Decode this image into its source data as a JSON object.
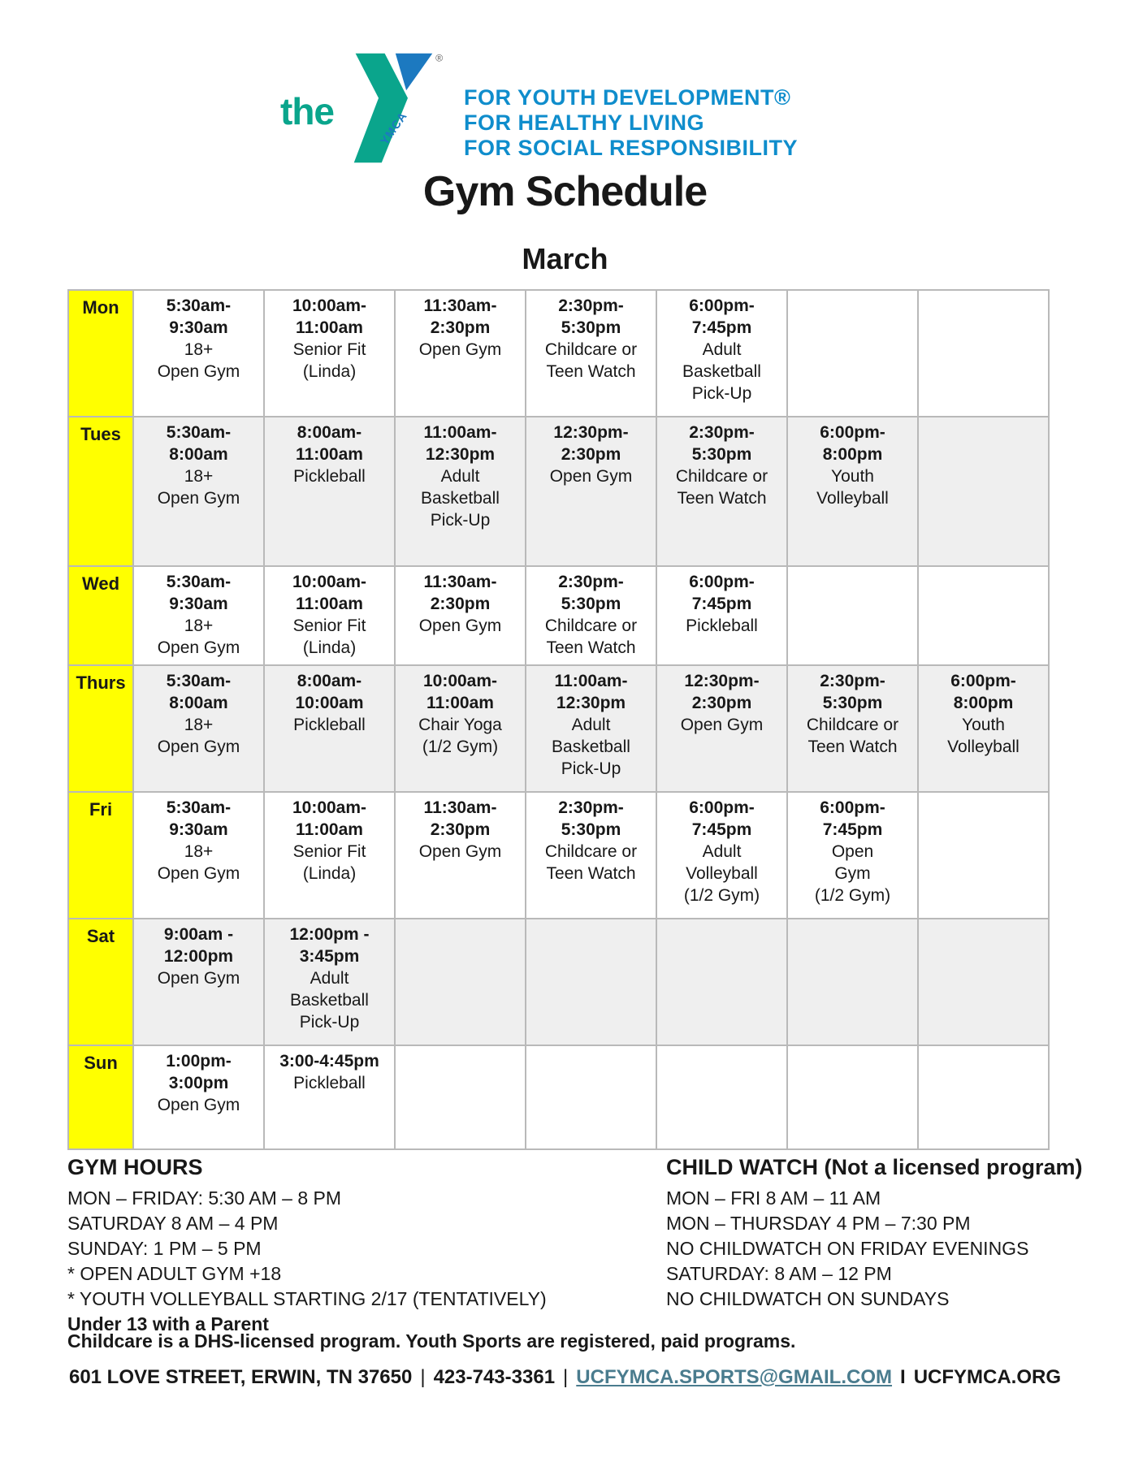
{
  "logo": {
    "the": "the",
    "ymca": "YMCA",
    "registered": "®",
    "taglines": [
      "FOR YOUTH DEVELOPMENT®",
      "FOR HEALTHY LIVING",
      "FOR SOCIAL RESPONSIBILITY"
    ]
  },
  "title": "Gym Schedule",
  "subtitle": "March",
  "colors": {
    "ymca_green": "#0aa58c",
    "ymca_blue": "#0f8dcc",
    "triangle_blue": "#1c79c0",
    "day_cell_yellow": "#ffff00",
    "shaded_row": "#efefef",
    "grid_border": "#b9b9b9",
    "email_link": "#4a7c8e"
  },
  "schedule": {
    "rows": [
      {
        "day": "Mon",
        "shaded": false,
        "cells": [
          {
            "time": [
              "5:30am-",
              "9:30am"
            ],
            "activity": [
              "18+",
              "Open Gym"
            ]
          },
          {
            "time": [
              "10:00am-",
              "11:00am"
            ],
            "activity": [
              "Senior Fit",
              "(Linda)"
            ]
          },
          {
            "time": [
              "11:30am-",
              "2:30pm"
            ],
            "activity": [
              "Open Gym"
            ]
          },
          {
            "time": [
              "2:30pm-",
              "5:30pm"
            ],
            "activity": [
              "Childcare or",
              "Teen Watch"
            ]
          },
          {
            "time": [
              "6:00pm-",
              "7:45pm"
            ],
            "activity": [
              "Adult",
              "Basketball",
              "Pick-Up"
            ]
          },
          null,
          null
        ]
      },
      {
        "day": "Tues",
        "shaded": true,
        "cells": [
          {
            "time": [
              "5:30am-",
              "8:00am"
            ],
            "activity": [
              "18+",
              "Open Gym"
            ]
          },
          {
            "time": [
              "8:00am-",
              "11:00am"
            ],
            "activity": [
              "Pickleball"
            ]
          },
          {
            "time": [
              "11:00am-",
              "12:30pm"
            ],
            "activity": [
              "Adult",
              "Basketball",
              "Pick-Up"
            ]
          },
          {
            "time": [
              "12:30pm-",
              "2:30pm"
            ],
            "activity": [
              "Open Gym"
            ]
          },
          {
            "time": [
              "2:30pm-",
              "5:30pm"
            ],
            "activity": [
              "Childcare or",
              "Teen Watch"
            ]
          },
          {
            "time": [
              "6:00pm-",
              "8:00pm"
            ],
            "activity": [
              "Youth",
              "Volleyball"
            ]
          },
          null
        ]
      },
      {
        "day": "Wed",
        "shaded": false,
        "cells": [
          {
            "time": [
              "5:30am-",
              "9:30am"
            ],
            "activity": [
              "18+",
              "Open Gym"
            ]
          },
          {
            "time": [
              "10:00am-",
              "11:00am"
            ],
            "activity": [
              "Senior Fit",
              "(Linda)"
            ]
          },
          {
            "time": [
              "11:30am-",
              "2:30pm"
            ],
            "activity": [
              "Open Gym"
            ]
          },
          {
            "time": [
              "2:30pm-",
              "5:30pm"
            ],
            "activity": [
              "Childcare or",
              "Teen Watch"
            ]
          },
          {
            "time": [
              "6:00pm-",
              "7:45pm"
            ],
            "activity": [
              "Pickleball"
            ]
          },
          null,
          null
        ]
      },
      {
        "day": "Thurs",
        "shaded": true,
        "cells": [
          {
            "time": [
              "5:30am-",
              "8:00am"
            ],
            "activity": [
              "18+",
              "Open Gym"
            ]
          },
          {
            "time": [
              "8:00am-",
              "10:00am"
            ],
            "activity": [
              "Pickleball"
            ]
          },
          {
            "time": [
              "10:00am-",
              "11:00am"
            ],
            "activity": [
              "Chair Yoga",
              "(1/2 Gym)"
            ]
          },
          {
            "time": [
              "11:00am-",
              "12:30pm"
            ],
            "activity": [
              "Adult",
              "Basketball",
              "Pick-Up"
            ]
          },
          {
            "time": [
              "12:30pm-",
              "2:30pm"
            ],
            "activity": [
              "Open Gym"
            ]
          },
          {
            "time": [
              "2:30pm-",
              "5:30pm"
            ],
            "activity": [
              "Childcare or",
              "Teen Watch"
            ]
          },
          {
            "time": [
              "6:00pm-",
              "8:00pm"
            ],
            "activity": [
              "Youth",
              "Volleyball"
            ]
          }
        ]
      },
      {
        "day": "Fri",
        "shaded": false,
        "cells": [
          {
            "time": [
              "5:30am-",
              "9:30am"
            ],
            "activity": [
              "18+",
              "Open Gym"
            ]
          },
          {
            "time": [
              "10:00am-",
              "11:00am"
            ],
            "activity": [
              "Senior Fit",
              "(Linda)"
            ]
          },
          {
            "time": [
              "11:30am-",
              "2:30pm"
            ],
            "activity": [
              "Open Gym"
            ]
          },
          {
            "time": [
              "2:30pm-",
              "5:30pm"
            ],
            "activity": [
              "Childcare or",
              "Teen Watch"
            ]
          },
          {
            "time": [
              "6:00pm-",
              "7:45pm"
            ],
            "activity": [
              "Adult",
              "Volleyball",
              "(1/2 Gym)"
            ]
          },
          {
            "time": [
              "6:00pm-",
              "7:45pm"
            ],
            "activity": [
              "Open",
              "Gym",
              "(1/2 Gym)"
            ]
          },
          null
        ]
      },
      {
        "day": "Sat",
        "shaded": true,
        "cells": [
          {
            "time": [
              "9:00am -",
              "12:00pm"
            ],
            "activity": [
              "Open Gym"
            ]
          },
          {
            "time": [
              "12:00pm -",
              "3:45pm"
            ],
            "activity": [
              "Adult",
              "Basketball",
              "Pick-Up"
            ]
          },
          null,
          null,
          null,
          null,
          null
        ]
      },
      {
        "day": "Sun",
        "shaded": false,
        "cells": [
          {
            "time": [
              "1:00pm-",
              "3:00pm"
            ],
            "activity": [
              "Open Gym"
            ]
          },
          {
            "time": [
              "3:00-4:45pm"
            ],
            "activity": [
              "Pickleball"
            ]
          },
          null,
          null,
          null,
          null,
          null
        ]
      }
    ]
  },
  "gym_hours": {
    "heading": "GYM HOURS",
    "lines": [
      "MON – FRIDAY: 5:30 AM – 8 PM",
      "SATURDAY 8 AM – 4 PM",
      "SUNDAY: 1 PM – 5 PM",
      "* OPEN ADULT GYM +18",
      "* YOUTH VOLLEYBALL STARTING 2/17 (TENTATIVELY)"
    ],
    "notes": [
      "Under 13 with a Parent",
      "Childcare is a DHS-licensed program. Youth Sports are registered, paid programs."
    ]
  },
  "child_watch": {
    "heading": "CHILD WATCH (Not a licensed program)",
    "lines": [
      "MON – FRI 8 AM – 11 AM",
      "MON – THURSDAY 4 PM – 7:30 PM",
      "NO CHILDWATCH ON FRIDAY EVENINGS",
      "SATURDAY: 8 AM – 12 PM",
      "NO CHILDWATCH ON SUNDAYS"
    ]
  },
  "footer": {
    "address": "601 LOVE STREET, ERWIN, TN 37650",
    "sep1": "|",
    "phone": "423-743-3361",
    "sep2": "|",
    "email": "UCFYMCA.SPORTS@GMAIL.COM",
    "sep3": "I",
    "website": "UCFYMCA.ORG"
  }
}
